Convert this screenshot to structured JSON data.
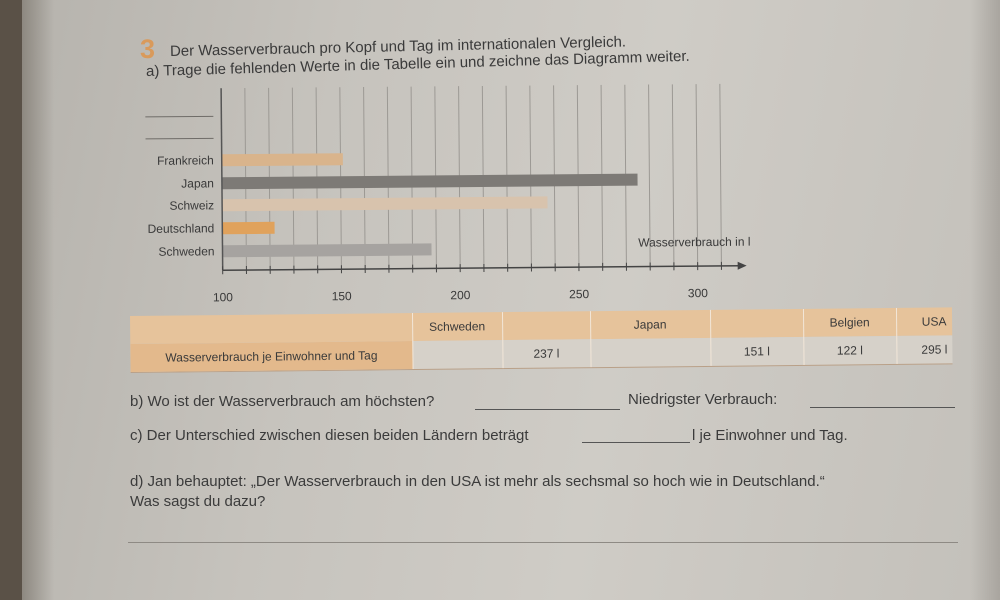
{
  "exercise": {
    "number": "3",
    "title": "Der Wasserverbrauch pro Kopf und Tag im internationalen Vergleich.",
    "task_a": "a) Trage die fehlenden Werte in die Tabelle ein und zeichne das Diagramm weiter."
  },
  "chart_data": {
    "type": "bar",
    "orientation": "horizontal",
    "categories": [
      "",
      "",
      "Frankreich",
      "Japan",
      "Schweiz",
      "Deutschland",
      "Schweden"
    ],
    "values": [
      null,
      null,
      151,
      275,
      237,
      122,
      188
    ],
    "colors": [
      "",
      "",
      "#d9b48c",
      "#7d7a76",
      "#d8c3ad",
      "#e0a25c",
      "#a6a3a0"
    ],
    "xlabel": "Wasserverbrauch in l",
    "xlim": [
      100,
      315
    ],
    "ticks": [
      100,
      150,
      200,
      250,
      300
    ],
    "tick_labels": [
      "100",
      "150",
      "200",
      "250",
      "300"
    ],
    "minor_tick_step": 10,
    "grid": true
  },
  "table": {
    "row_label": "Wasserverbrauch je Einwohner und Tag",
    "countries": [
      "Schweden",
      "",
      "Japan",
      "",
      "Belgien",
      "USA"
    ],
    "values": [
      "",
      "237 l",
      "",
      "151 l",
      "122 l",
      "295 l"
    ]
  },
  "questions": {
    "b1": "b) Wo ist der Wasserverbrauch am höchsten?",
    "b2": "Niedrigster Verbrauch:",
    "c1": "c) Der Unterschied zwischen diesen beiden Ländern beträgt",
    "c2": "l je Einwohner und Tag.",
    "d1": "d) Jan behauptet: „Der Wasserverbrauch in den USA ist mehr als sechsmal so hoch wie in Deutschland.“",
    "d2": "Was sagst du dazu?"
  }
}
